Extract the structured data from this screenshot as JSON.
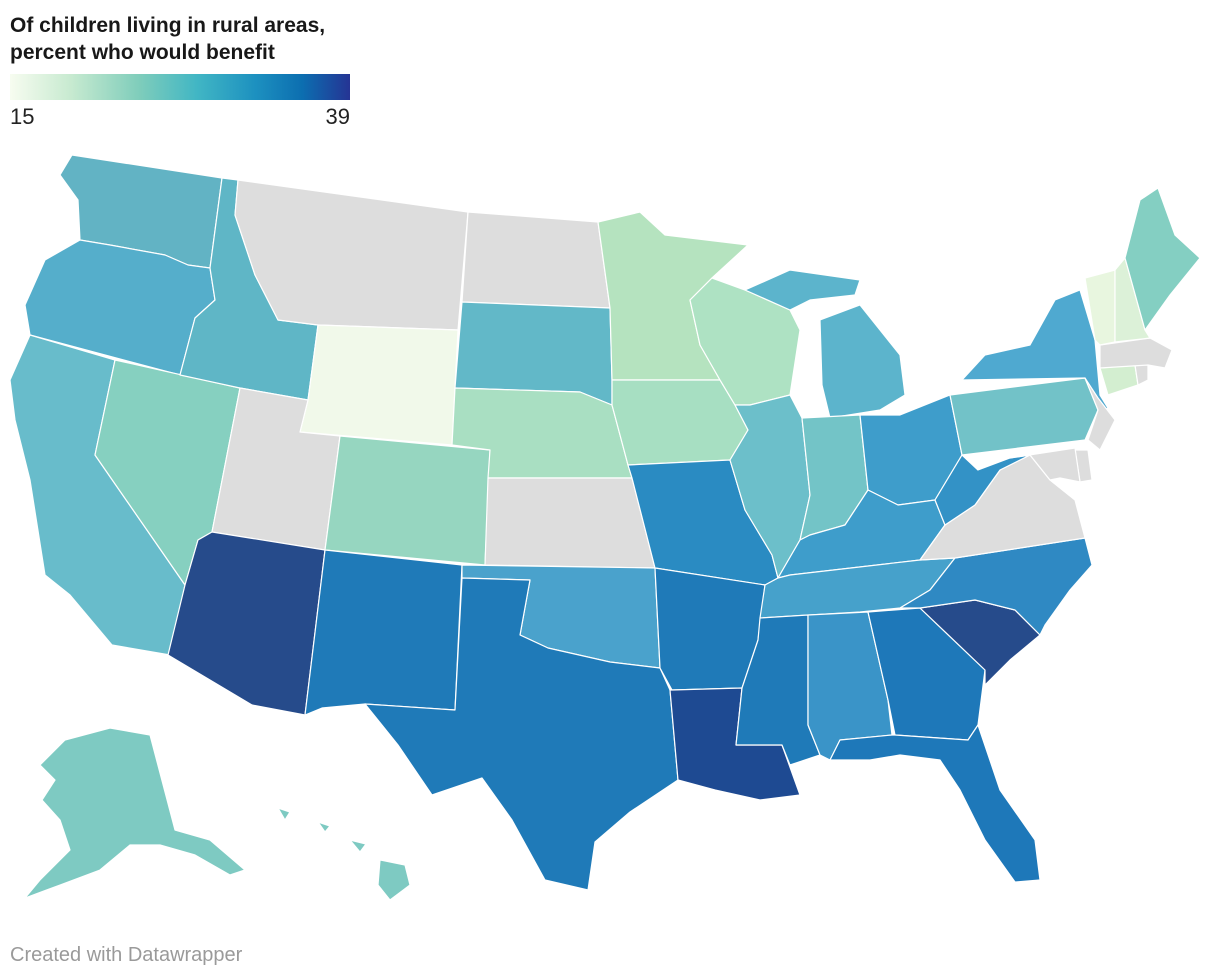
{
  "title": {
    "line1": "Of children living in rural areas,",
    "line2": "percent who would benefit"
  },
  "legend": {
    "min": "15",
    "max": "39",
    "colors": [
      "#f7fcf0",
      "#c7ead0",
      "#7fcdbb",
      "#41b6c4",
      "#1d91c0",
      "#0c6eb0",
      "#253494"
    ]
  },
  "no_data_color": "#dddddd",
  "credit": "Created with Datawrapper",
  "state_colors": {
    "WA": "#62b3c4",
    "OR": "#55aecb",
    "CA": "#68bccb",
    "NV": "#86d0c0",
    "ID": "#5fb6c6",
    "MT": "#dddddd",
    "WY": "#f1f9ea",
    "UT": "#dddddd",
    "AZ": "#264b8b",
    "CO": "#96d6c0",
    "NM": "#1f7ab8",
    "ND": "#dddddd",
    "SD": "#62b8c8",
    "NE": "#a9dfc2",
    "KS": "#dddddd",
    "OK": "#4aa2cc",
    "TX": "#1f7ab8",
    "MN": "#b5e3bf",
    "IA": "#a7dfc2",
    "MO": "#2a8bc2",
    "AR": "#1f7ab8",
    "LA": "#1e4a92",
    "WI": "#aee2c3",
    "IL": "#6cbfca",
    "MI": "#5cb4cc",
    "IN": "#73c4c7",
    "OH": "#3e9dcb",
    "KY": "#3e9dcb",
    "TN": "#46a1cb",
    "MS": "#1f7ab8",
    "AL": "#3a94c8",
    "GA": "#1e78b9",
    "FL": "#1e78b9",
    "SC": "#264b8b",
    "NC": "#2f89c3",
    "VA": "#dddddd",
    "WV": "#3392c6",
    "PA": "#72c2c8",
    "NY": "#4fa9d0",
    "ME": "#84cfc2",
    "VT": "#e8f6df",
    "NH": "#dcf1d8",
    "MA": "#dddddd",
    "CT": "#d3eed0",
    "RI": "#dddddd",
    "NJ": "#dddddd",
    "DE": "#dddddd",
    "MD": "#dddddd",
    "AK": "#7ecac2",
    "HI": "#7ecac2"
  }
}
